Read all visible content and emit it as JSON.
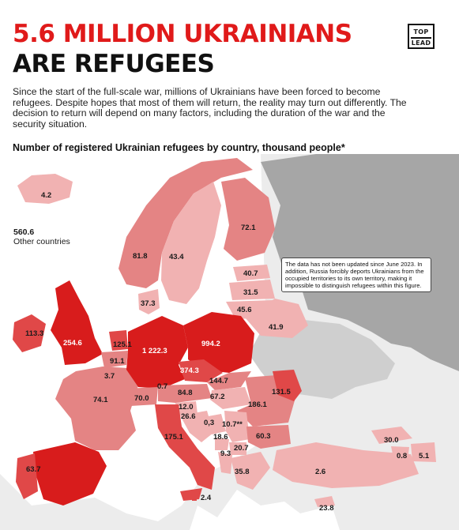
{
  "title_line1": "5.6 MILLION UKRAINIANS",
  "title_line2": "ARE REFUGEES",
  "logo": {
    "line1": "TOP",
    "line2": "LEAD"
  },
  "intro": "Since the start of the full-scale war, millions of Ukrainians have been forced to become refugees. Despite hopes that most of them will return, the reality may turn out differently. The decision to return will depend on many factors, including the duration of the war and the security situation.",
  "subtitle": "Number of registered Ukrainian refugees by country, thousand people*",
  "other_countries": {
    "value": "560.6",
    "label": "Other countries"
  },
  "note": "The data has not been updated since June 2023. In addition, Russia forcibly deports Ukrainians from the occupied territories to its own territory, making it impossible to distinguish refugees within this figure.",
  "colors": {
    "title_red": "#e01a1a",
    "highest": "#d81c1c",
    "high": "#e04848",
    "medium": "#e48484",
    "low": "#f1b2b2",
    "excluded": "#a6a6a6",
    "other": "#ececec"
  },
  "countries": [
    {
      "name": "Iceland",
      "value": "4.2"
    },
    {
      "name": "Norway",
      "value": "81.8"
    },
    {
      "name": "Sweden",
      "value": "43.4"
    },
    {
      "name": "Finland",
      "value": "72.1"
    },
    {
      "name": "Estonia",
      "value": "40.7"
    },
    {
      "name": "Latvia",
      "value": "31.5"
    },
    {
      "name": "Lithuania",
      "value": "45.6"
    },
    {
      "name": "Belarus",
      "value": "41.9"
    },
    {
      "name": "Denmark",
      "value": "37.3"
    },
    {
      "name": "Ireland",
      "value": "113.3"
    },
    {
      "name": "United Kingdom",
      "value": "254.6"
    },
    {
      "name": "Netherlands",
      "value": "125.1"
    },
    {
      "name": "Belgium",
      "value": "91.1"
    },
    {
      "name": "Luxembourg",
      "value": "3.7"
    },
    {
      "name": "France",
      "value": "74.1"
    },
    {
      "name": "Germany",
      "value": "1 222.3"
    },
    {
      "name": "Poland",
      "value": "994.2"
    },
    {
      "name": "Czech Republic",
      "value": "374.3"
    },
    {
      "name": "Slovakia",
      "value": "144.7"
    },
    {
      "name": "Liechtenstein",
      "value": "0.7"
    },
    {
      "name": "Switzerland",
      "value": "70.0"
    },
    {
      "name": "Austria",
      "value": "84.8"
    },
    {
      "name": "Hungary",
      "value": "67.2"
    },
    {
      "name": "Romania",
      "value": "131.5"
    },
    {
      "name": "Moldova",
      "value": "186.1"
    },
    {
      "name": "Slovenia",
      "value": "12.0"
    },
    {
      "name": "Croatia",
      "value": "26.6"
    },
    {
      "name": "Bosnia and Herzegovina",
      "value": "0,3"
    },
    {
      "name": "Serbia",
      "value": "10.7**"
    },
    {
      "name": "Italy",
      "value": "175.1"
    },
    {
      "name": "Montenegro",
      "value": "18.6"
    },
    {
      "name": "Kosovo",
      "value": "20.7"
    },
    {
      "name": "Albania",
      "value": "9.3"
    },
    {
      "name": "Bulgaria",
      "value": "60.3"
    },
    {
      "name": "Greece",
      "value": "35.8"
    },
    {
      "name": "Georgia",
      "value": "30.0"
    },
    {
      "name": "Armenia",
      "value": "0.8"
    },
    {
      "name": "Azerbaijan",
      "value": "5.1"
    },
    {
      "name": "Turkey",
      "value": "2.6"
    },
    {
      "name": "Malta",
      "value": "2.4"
    },
    {
      "name": "Cyprus",
      "value": "23.8"
    },
    {
      "name": "Portugal",
      "value": "63.7"
    },
    {
      "name": "Spain",
      "value": ""
    }
  ]
}
